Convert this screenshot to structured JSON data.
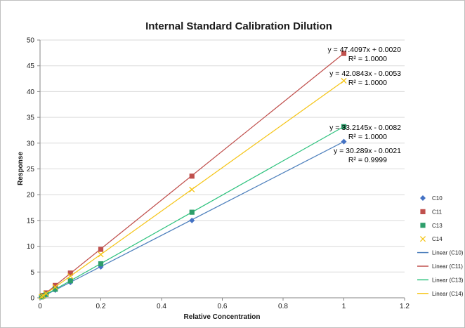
{
  "chart_data": {
    "type": "scatter",
    "title": "Internal Standard Calibration Dilution",
    "xlabel": "Relative Concentration",
    "ylabel": "Response",
    "xlim": [
      0,
      1.2
    ],
    "ylim": [
      0,
      50
    ],
    "x_ticks": [
      "0",
      "0.2",
      "0.4",
      "0.6",
      "0.8",
      "1",
      "1.2"
    ],
    "y_ticks": [
      "0",
      "5",
      "10",
      "15",
      "20",
      "25",
      "30",
      "35",
      "40",
      "45",
      "50"
    ],
    "x": [
      0.005,
      0.01,
      0.02,
      0.05,
      0.1,
      0.2,
      0.5,
      1
    ],
    "grid": "horizontal",
    "legend_position": "right",
    "series": [
      {
        "name": "C10",
        "marker": "diamond",
        "color": "#4472c4",
        "y": [
          0.15,
          0.3,
          0.6,
          1.5,
          3.0,
          6.0,
          15.0,
          30.3
        ]
      },
      {
        "name": "C11",
        "marker": "square",
        "color": "#c0504d",
        "y": [
          0.24,
          0.47,
          0.95,
          2.4,
          4.8,
          9.4,
          23.6,
          47.4
        ]
      },
      {
        "name": "C13",
        "marker": "square",
        "color": "#2e9e6b",
        "y": [
          0.17,
          0.33,
          0.66,
          1.65,
          3.3,
          6.6,
          16.6,
          33.2
        ]
      },
      {
        "name": "C14",
        "marker": "x",
        "color": "#f5c518",
        "y": [
          0.21,
          0.42,
          0.84,
          2.1,
          4.2,
          8.4,
          21.0,
          42.1
        ]
      }
    ],
    "trendlines": [
      {
        "name": "Linear (C10)",
        "color": "#4f81bd",
        "slope": 30.289,
        "intercept": -0.0021,
        "equation": "y = 30.289x - 0.0021",
        "r2": "R² = 0.9999"
      },
      {
        "name": "Linear (C11)",
        "color": "#c0504d",
        "slope": 47.4097,
        "intercept": 0.002,
        "equation": "y = 47.4097x + 0.0020",
        "r2": "R² = 1.0000"
      },
      {
        "name": "Linear (C13)",
        "color": "#2ec27e",
        "slope": 33.2145,
        "intercept": -0.0082,
        "equation": "y = 33.2145x - 0.0082",
        "r2": "R² = 1.0000"
      },
      {
        "name": "Linear (C14)",
        "color": "#f5c518",
        "slope": 42.0843,
        "intercept": -0.0053,
        "equation": "y = 42.0843x - 0.0053",
        "r2": "R² = 1.0000"
      }
    ]
  }
}
